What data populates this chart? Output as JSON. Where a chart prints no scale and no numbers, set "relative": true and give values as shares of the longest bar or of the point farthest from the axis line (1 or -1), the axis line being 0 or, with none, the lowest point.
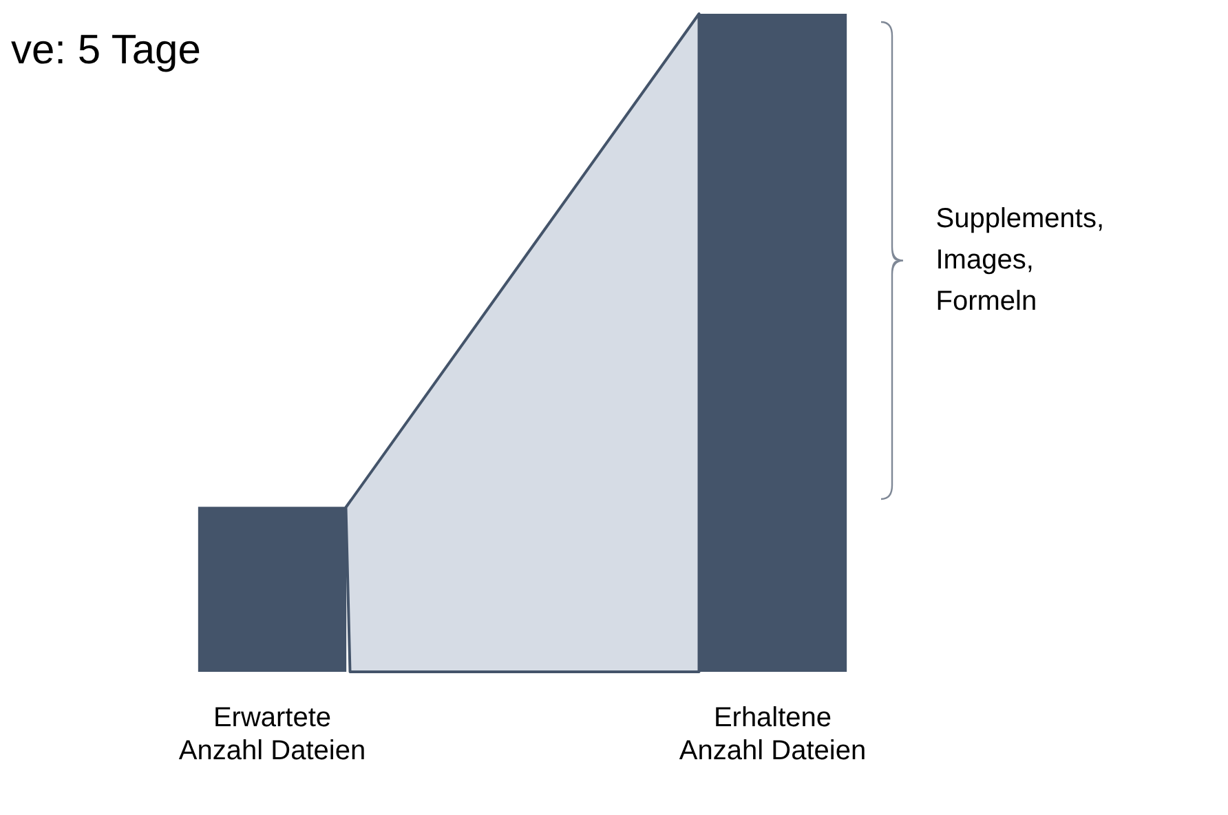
{
  "chart_data": {
    "type": "bar",
    "title": "ve: 5 Tage",
    "categories": [
      "Erwartete Anzahl Dateien",
      "Erhaltene Anzahl Dateien"
    ],
    "values": [
      0.25,
      1
    ],
    "color": "#44546a",
    "relative": true,
    "grid": false,
    "legend": false,
    "annotations": [
      "Supplements, Images, Formeln"
    ]
  }
}
